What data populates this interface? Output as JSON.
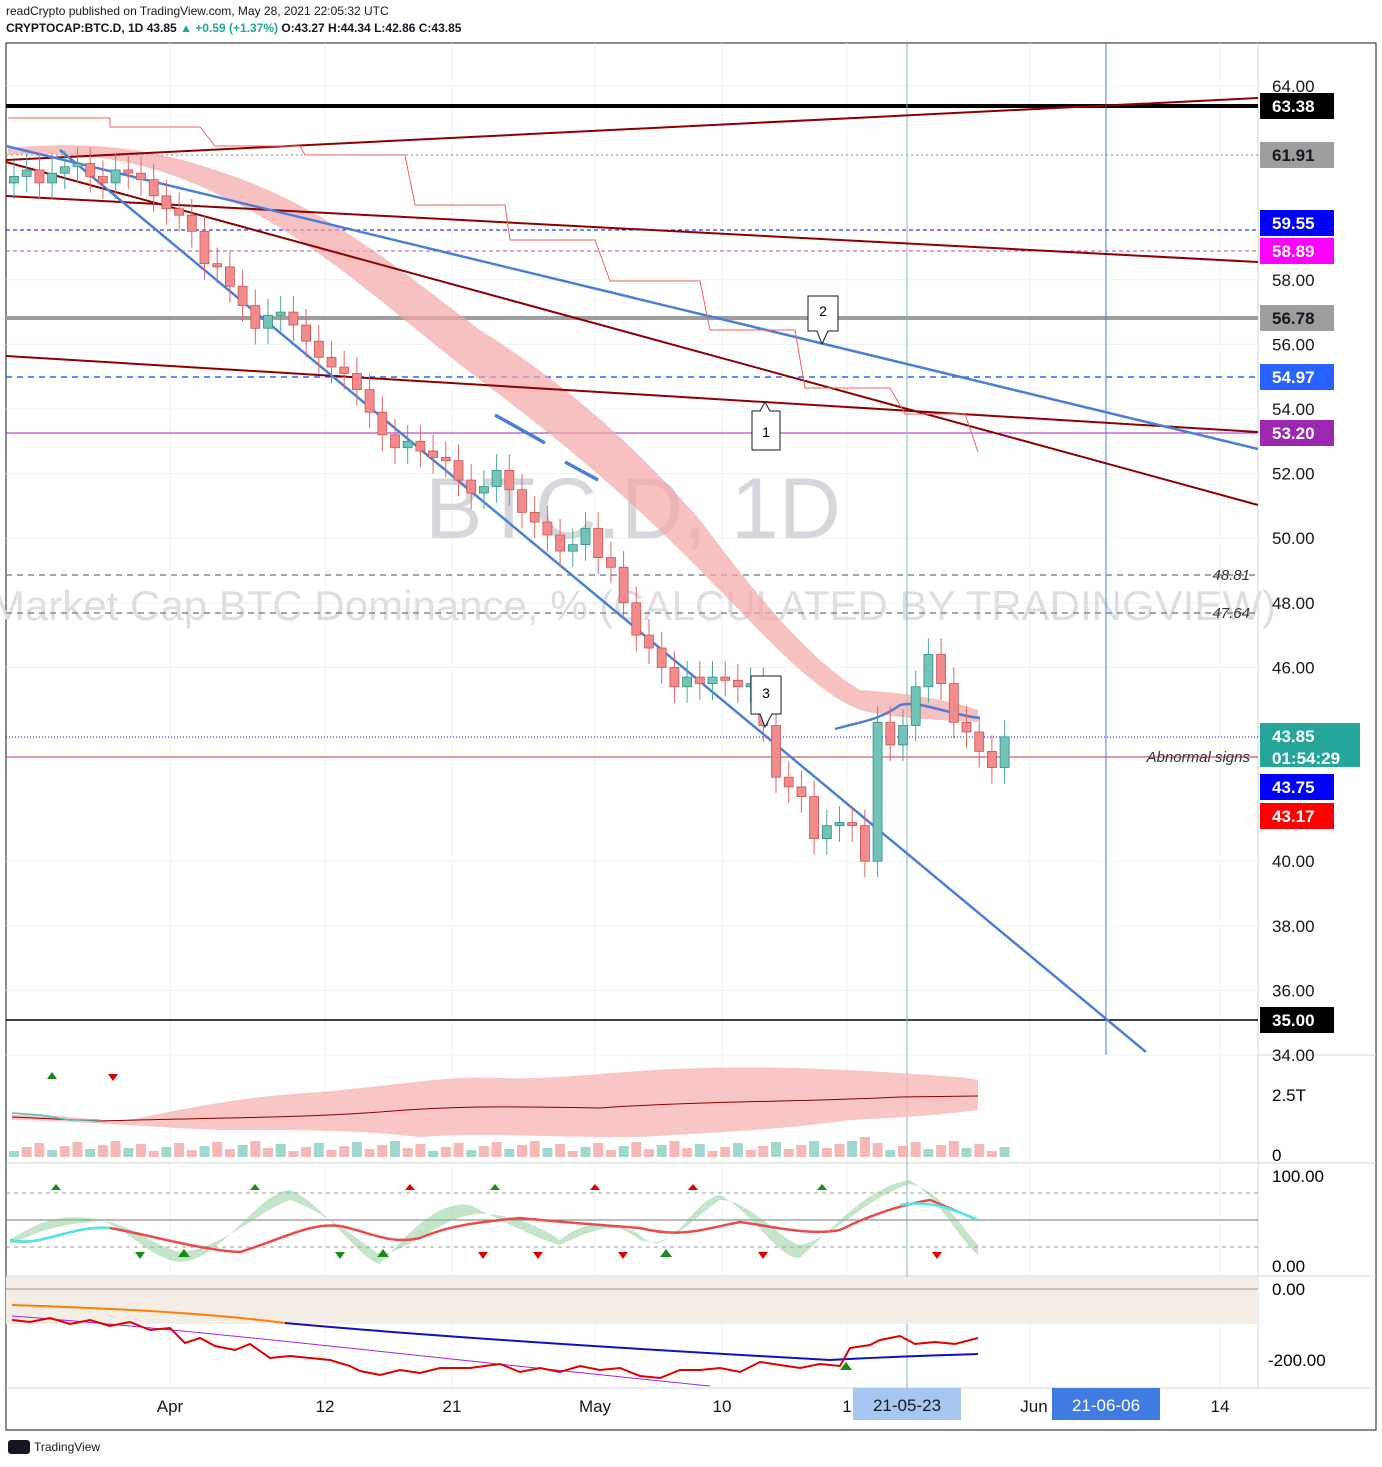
{
  "header": {
    "publisher_line": "readCrypto published on TradingView.com, May 28, 2021 22:05:32 UTC",
    "symbol": "CRYPTOCAP:BTC.D, 1D",
    "last": "43.85",
    "change": "▲ +0.59 (+1.37%)",
    "ohlc": "O:43.27 H:44.34 L:42.86 C:43.85"
  },
  "watermark": {
    "symbol": "BTC.D, 1D",
    "description": "Market Cap BTC Dominance, % (CALCULATED BY TRADINGVIEW)"
  },
  "footer": {
    "brand": "TradingView"
  },
  "colors": {
    "bull": "#73c4b8",
    "bear": "#f28b8b",
    "trendline_blue": "#4a7fd9",
    "trendline_red": "#8b0000",
    "ribbon": "#f4a6a6"
  },
  "chart_data": {
    "type": "candlestick",
    "ylim": [
      34,
      65
    ],
    "y_ticks": [
      "64.00",
      "58.00",
      "56.00",
      "54.00",
      "52.00",
      "50.00",
      "48.00",
      "46.00",
      "40.00",
      "38.00",
      "36.00",
      "34.00"
    ],
    "x_ticks": [
      "Apr",
      "12",
      "21",
      "May",
      "10",
      "1",
      "Jun",
      "14"
    ],
    "x_highlight_labels": [
      "21-05-23",
      "21-06-06"
    ],
    "price_labels": [
      {
        "text": "63.38",
        "bg": "#000000",
        "fg": "#ffffff"
      },
      {
        "text": "61.91",
        "bg": "#9e9e9e",
        "fg": "#131722"
      },
      {
        "text": "59.55",
        "bg": "#0000ff",
        "fg": "#ffffff"
      },
      {
        "text": "58.89",
        "bg": "#ff00ff",
        "fg": "#ffffff"
      },
      {
        "text": "56.78",
        "bg": "#9e9e9e",
        "fg": "#131722"
      },
      {
        "text": "54.97",
        "bg": "#2962ff",
        "fg": "#ffffff"
      },
      {
        "text": "53.20",
        "bg": "#9c27b0",
        "fg": "#ffffff"
      },
      {
        "text": "43.85",
        "bg": "#26a69a",
        "fg": "#ffffff",
        "sub": "01:54:29"
      },
      {
        "text": "43.75",
        "bg": "#0000ff",
        "fg": "#ffffff"
      },
      {
        "text": "43.17",
        "bg": "#ff0000",
        "fg": "#ffffff"
      },
      {
        "text": "35.00",
        "bg": "#000000",
        "fg": "#ffffff"
      }
    ],
    "annotations": [
      {
        "text": "48.81"
      },
      {
        "text": "47.64"
      },
      {
        "text": "Abnormal signs"
      },
      {
        "text": "1"
      },
      {
        "text": "2"
      },
      {
        "text": "3"
      }
    ],
    "panes": [
      {
        "name": "volume",
        "ticks": [
          "2.5T",
          "0"
        ]
      },
      {
        "name": "oscillator",
        "ticks": [
          "100.00",
          "0.00"
        ]
      },
      {
        "name": "obv",
        "ticks": [
          "0.00",
          "-200.00"
        ]
      }
    ]
  }
}
